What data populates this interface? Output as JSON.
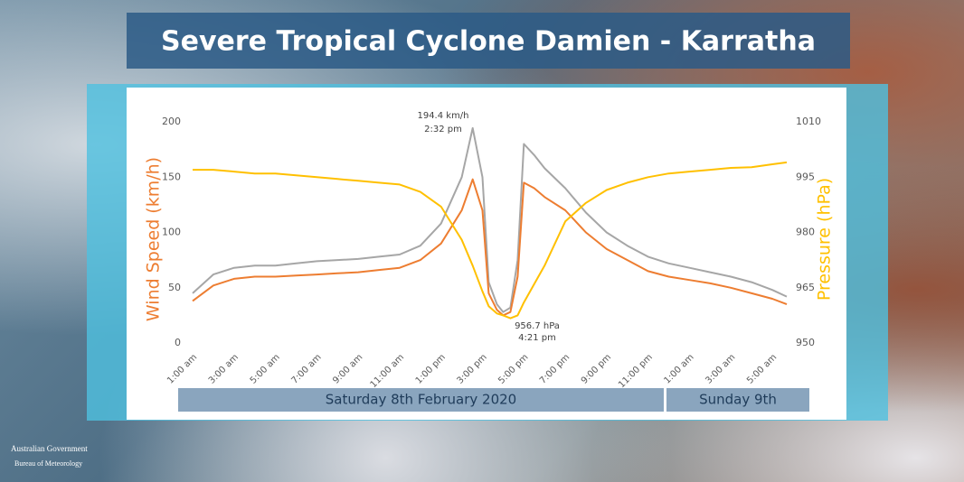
{
  "title": "Severe Tropical Cyclone Damien - Karratha",
  "logo": {
    "line1": "Australian Government",
    "line2": "Bureau of Meteorology"
  },
  "chart_data": {
    "type": "line",
    "ylabel": "Wind Speed (km/h)",
    "y2label": "Pressure (hPa)",
    "x": [
      0,
      1,
      2,
      3,
      4,
      5,
      6,
      7,
      8,
      9,
      10,
      11,
      12,
      13,
      13.53,
      14,
      14.3,
      14.7,
      15,
      15.35,
      15.7,
      16,
      16.5,
      17,
      18,
      19,
      20,
      21,
      22,
      23,
      24,
      25,
      26,
      27,
      28,
      28.7
    ],
    "xlim": [
      0,
      28.7
    ],
    "xticks": [
      {
        "value": 0,
        "label": "1:00 am"
      },
      {
        "value": 2,
        "label": "3:00 am"
      },
      {
        "value": 4,
        "label": "5:00 am"
      },
      {
        "value": 6,
        "label": "7:00 am"
      },
      {
        "value": 8,
        "label": "9:00 am"
      },
      {
        "value": 10,
        "label": "11:00 am"
      },
      {
        "value": 12,
        "label": "1:00 pm"
      },
      {
        "value": 14,
        "label": "3:00 pm"
      },
      {
        "value": 16,
        "label": "5:00 pm"
      },
      {
        "value": 18,
        "label": "7:00 pm"
      },
      {
        "value": 20,
        "label": "9:00 pm"
      },
      {
        "value": 22,
        "label": "11:00 pm"
      },
      {
        "value": 24,
        "label": "1:00 am"
      },
      {
        "value": 26,
        "label": "3:00 am"
      },
      {
        "value": 28,
        "label": "5:00 am"
      }
    ],
    "ylim": [
      0,
      200
    ],
    "yticks": [
      0,
      50,
      100,
      150,
      200
    ],
    "y2lim": [
      950,
      1010
    ],
    "y2ticks": [
      950,
      965,
      980,
      995,
      1010
    ],
    "series": [
      {
        "color": "#a6a6a6",
        "values": [
          45,
          62,
          68,
          70,
          70,
          72,
          74,
          75,
          76,
          78,
          80,
          88,
          108,
          150,
          194.4,
          150,
          55,
          35,
          28,
          32,
          75,
          180,
          170,
          158,
          140,
          118,
          100,
          88,
          78,
          72,
          68,
          64,
          60,
          55,
          48,
          42
        ]
      },
      {
        "color": "#ed7d31",
        "values": [
          38,
          52,
          58,
          60,
          60,
          61,
          62,
          63,
          64,
          66,
          68,
          75,
          90,
          120,
          148,
          120,
          45,
          30,
          25,
          28,
          60,
          145,
          140,
          132,
          120,
          100,
          85,
          75,
          65,
          60,
          57,
          54,
          50,
          45,
          40,
          35
        ]
      },
      {
        "color": "#ffc000",
        "axis": "y2",
        "values": [
          997,
          997,
          996.5,
          996,
          996,
          995.5,
          995,
          994.5,
          994,
          993.5,
          993,
          991,
          987,
          978,
          971,
          964,
          960,
          958,
          957.5,
          956.7,
          957.5,
          961,
          966,
          971,
          983,
          988,
          991.5,
          993.5,
          995,
          996,
          996.5,
          997,
          997.5,
          997.7,
          998.5,
          999
        ]
      }
    ],
    "annotations": [
      "194.4 km/h",
      "2:32 pm",
      "956.7 hPa",
      "4:21 pm"
    ],
    "days": [
      "Saturday 8th February 2020",
      "Sunday 9th"
    ]
  }
}
